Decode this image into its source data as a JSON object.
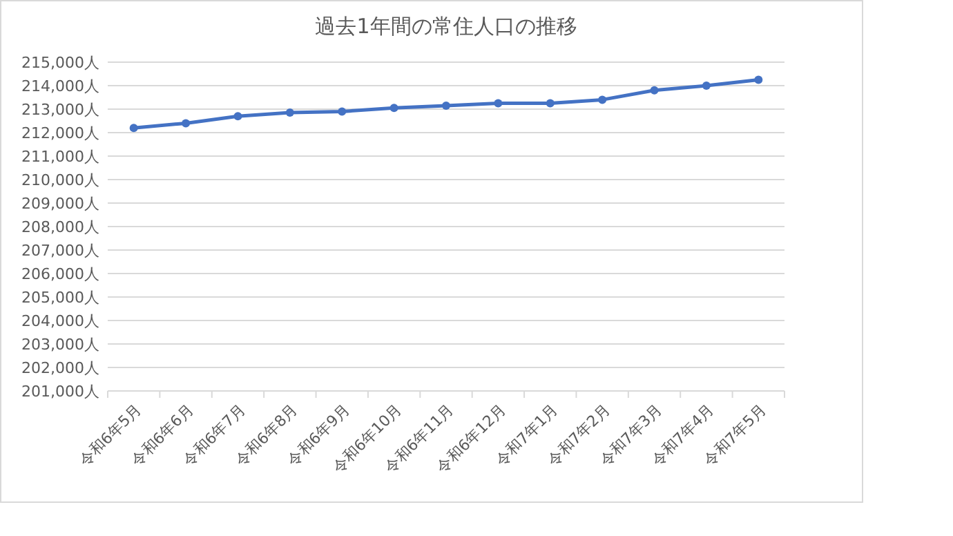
{
  "chart_data": {
    "type": "line",
    "title": "過去1年間の常住人口の推移",
    "categories": [
      "令和6年5月",
      "令和6年6月",
      "令和6年7月",
      "令和6年8月",
      "令和6年9月",
      "令和6年10月",
      "令和6年11月",
      "令和6年12月",
      "令和7年1月",
      "令和7年2月",
      "令和7年3月",
      "令和7年4月",
      "令和7年5月"
    ],
    "series": [
      {
        "color": "#4472c4",
        "values": [
          212200,
          212400,
          212700,
          212850,
          212900,
          213050,
          213150,
          213250,
          213250,
          213400,
          213800,
          214000,
          214250
        ]
      }
    ],
    "ylim": [
      201000,
      215000
    ],
    "yticks": [
      {
        "value": 201000,
        "label": "201,000人"
      },
      {
        "value": 202000,
        "label": "202,000人"
      },
      {
        "value": 203000,
        "label": "203,000人"
      },
      {
        "value": 204000,
        "label": "204,000人"
      },
      {
        "value": 205000,
        "label": "205,000人"
      },
      {
        "value": 206000,
        "label": "206,000人"
      },
      {
        "value": 207000,
        "label": "207,000人"
      },
      {
        "value": 208000,
        "label": "208,000人"
      },
      {
        "value": 209000,
        "label": "209,000人"
      },
      {
        "value": 210000,
        "label": "210,000人"
      },
      {
        "value": 211000,
        "label": "211,000人"
      },
      {
        "value": 212000,
        "label": "212,000人"
      },
      {
        "value": 213000,
        "label": "213,000人"
      },
      {
        "value": 214000,
        "label": "214,000人"
      },
      {
        "value": 215000,
        "label": "215,000人"
      }
    ],
    "grid": "y",
    "marker": "circle",
    "line_style": "solid"
  }
}
